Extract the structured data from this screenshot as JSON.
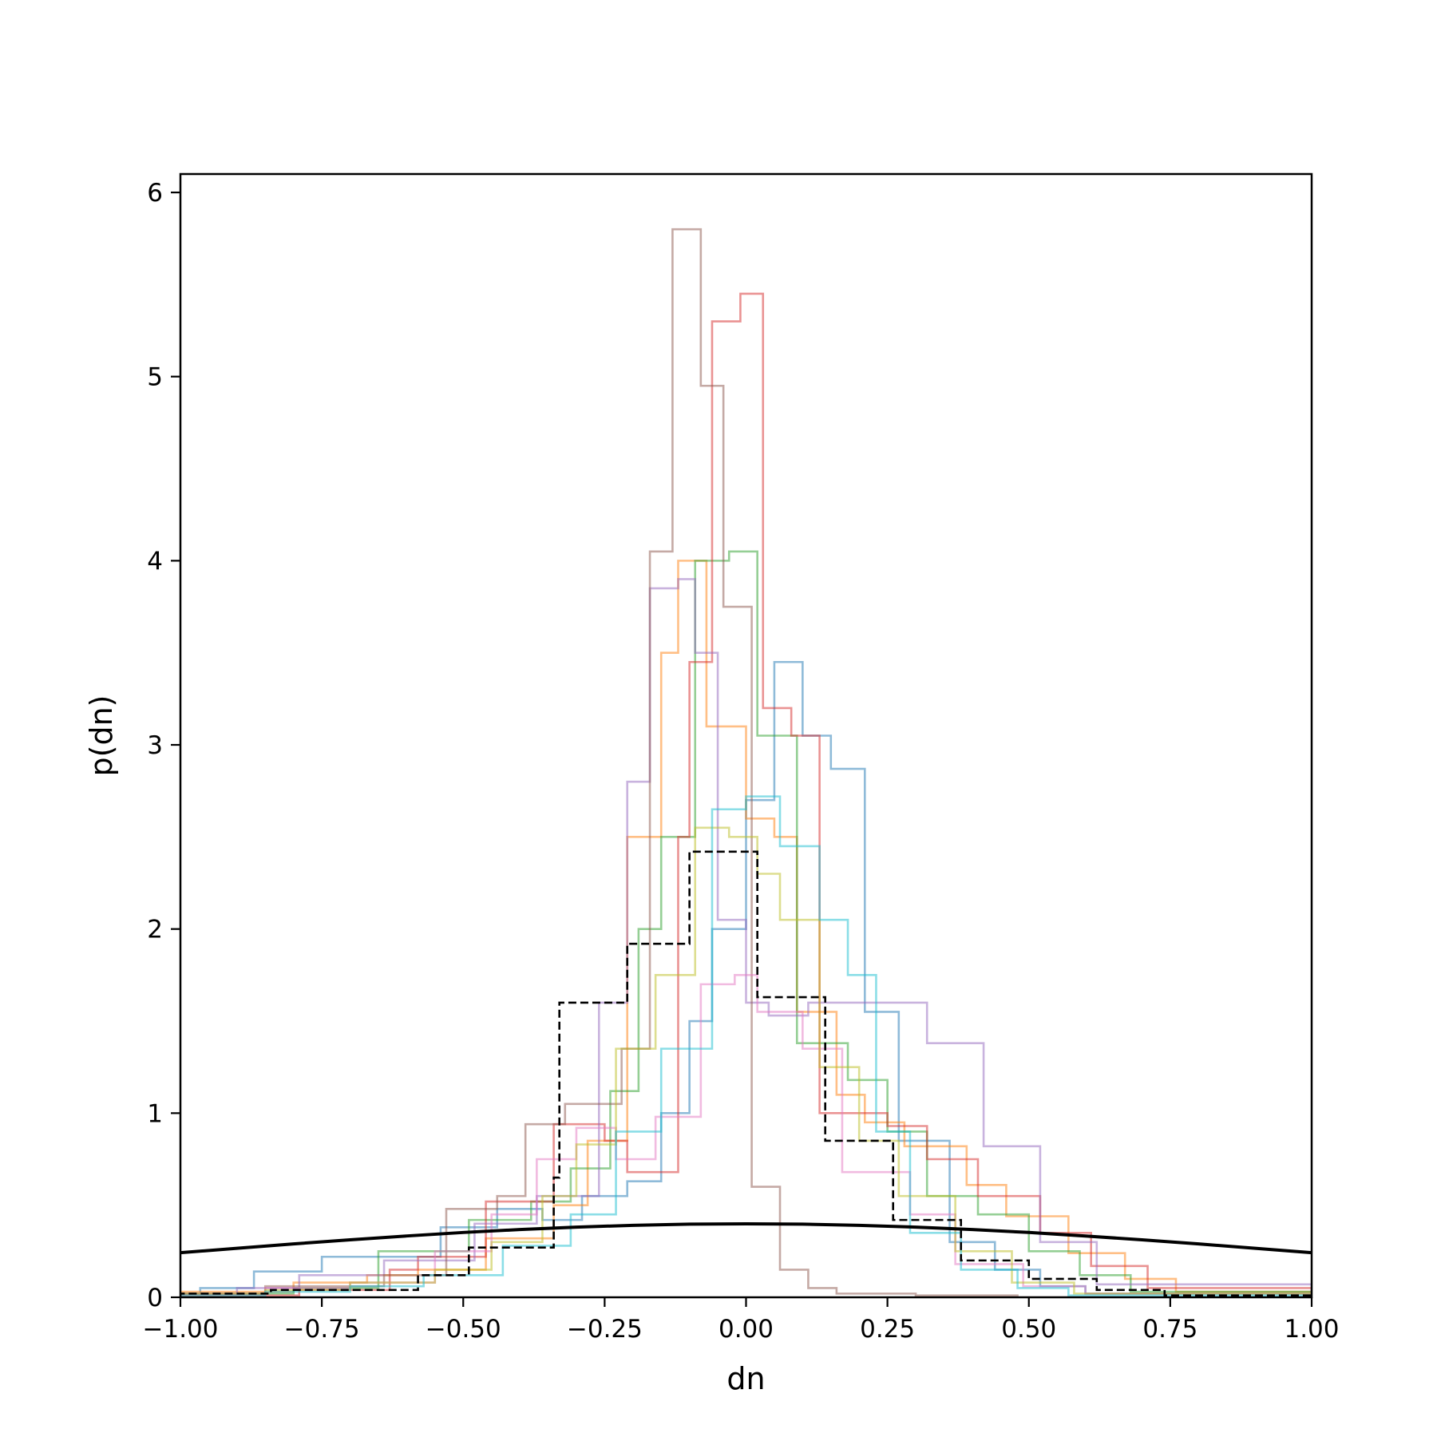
{
  "chart_data": {
    "type": "line",
    "subtype": "step-histogram",
    "xlabel": "dn",
    "ylabel": "p(dn)",
    "xlim": [
      -1.0,
      1.0
    ],
    "ylim": [
      0,
      6.1
    ],
    "x_ticks": [
      -1.0,
      -0.75,
      -0.5,
      -0.25,
      0.0,
      0.25,
      0.5,
      0.75,
      1.0
    ],
    "x_tick_labels": [
      "−1.00",
      "−0.75",
      "−0.50",
      "−0.25",
      "0.00",
      "0.25",
      "0.50",
      "0.75",
      "1.00"
    ],
    "y_ticks": [
      0,
      1,
      2,
      3,
      4,
      5,
      6
    ],
    "y_tick_labels": [
      "0",
      "1",
      "2",
      "3",
      "4",
      "5",
      "6"
    ],
    "grid": false,
    "legend": "none",
    "series": [
      {
        "color": "#1f77b4",
        "style": "step",
        "edges": [
          -1.0,
          -0.965,
          -0.87,
          -0.75,
          -0.54,
          -0.44,
          -0.36,
          -0.29,
          -0.21,
          -0.15,
          -0.1,
          -0.06,
          0.0,
          0.05,
          0.1,
          0.15,
          0.21,
          0.27,
          0.36,
          0.44,
          0.52,
          0.6,
          1.0
        ],
        "values": [
          0.02,
          0.05,
          0.14,
          0.22,
          0.38,
          0.48,
          0.42,
          0.55,
          0.63,
          1.0,
          1.5,
          2.0,
          2.7,
          3.45,
          3.05,
          2.87,
          1.55,
          0.85,
          0.3,
          0.15,
          0.06,
          0.02
        ]
      },
      {
        "color": "#ff7f0e",
        "style": "step",
        "edges": [
          -1.0,
          -0.8,
          -0.67,
          -0.58,
          -0.46,
          -0.34,
          -0.28,
          -0.21,
          -0.15,
          -0.12,
          -0.07,
          0.0,
          0.05,
          0.09,
          0.16,
          0.21,
          0.28,
          0.39,
          0.46,
          0.57,
          0.67,
          0.76,
          1.0
        ],
        "values": [
          0.03,
          0.08,
          0.12,
          0.15,
          0.32,
          0.5,
          0.85,
          2.5,
          3.5,
          4.0,
          3.1,
          2.6,
          2.5,
          1.55,
          1.1,
          0.95,
          0.82,
          0.61,
          0.44,
          0.24,
          0.1,
          0.03
        ]
      },
      {
        "color": "#2ca02c",
        "style": "step",
        "edges": [
          -1.0,
          -0.8,
          -0.65,
          -0.49,
          -0.38,
          -0.31,
          -0.24,
          -0.19,
          -0.15,
          -0.09,
          -0.03,
          0.02,
          0.09,
          0.18,
          0.25,
          0.32,
          0.41,
          0.5,
          0.59,
          0.68,
          1.0
        ],
        "values": [
          0.02,
          0.05,
          0.25,
          0.42,
          0.52,
          0.7,
          1.12,
          2.0,
          2.5,
          4.0,
          4.05,
          3.05,
          1.38,
          1.18,
          0.9,
          0.55,
          0.45,
          0.25,
          0.12,
          0.03
        ]
      },
      {
        "color": "#d62728",
        "style": "step",
        "edges": [
          -1.0,
          -0.79,
          -0.63,
          -0.58,
          -0.46,
          -0.34,
          -0.25,
          -0.21,
          -0.12,
          -0.1,
          -0.06,
          -0.01,
          0.03,
          0.08,
          0.13,
          0.25,
          0.32,
          0.41,
          0.52,
          0.61,
          0.71,
          1.0
        ],
        "values": [
          0.01,
          0.04,
          0.15,
          0.22,
          0.52,
          0.94,
          0.85,
          0.68,
          2.5,
          3.45,
          5.3,
          5.45,
          3.2,
          3.05,
          1.0,
          0.93,
          0.75,
          0.55,
          0.35,
          0.17,
          0.05
        ]
      },
      {
        "color": "#9467bd",
        "style": "step",
        "edges": [
          -1.0,
          -0.9,
          -0.79,
          -0.64,
          -0.48,
          -0.37,
          -0.26,
          -0.21,
          -0.17,
          -0.12,
          -0.09,
          -0.05,
          0.0,
          0.04,
          0.11,
          0.21,
          0.32,
          0.42,
          0.52,
          0.62,
          1.0
        ],
        "values": [
          0.02,
          0.05,
          0.12,
          0.2,
          0.4,
          0.55,
          1.6,
          2.8,
          3.85,
          3.9,
          3.5,
          2.05,
          1.6,
          1.53,
          1.6,
          1.6,
          1.38,
          0.82,
          0.3,
          0.07
        ]
      },
      {
        "color": "#8c564b",
        "style": "step",
        "edges": [
          -1.0,
          -0.85,
          -0.64,
          -0.53,
          -0.44,
          -0.39,
          -0.32,
          -0.22,
          -0.17,
          -0.13,
          -0.08,
          -0.04,
          0.01,
          0.06,
          0.11,
          0.16,
          0.3,
          0.48,
          1.0
        ],
        "values": [
          0.02,
          0.06,
          0.12,
          0.48,
          0.55,
          0.94,
          1.05,
          1.35,
          4.05,
          5.8,
          4.95,
          3.75,
          0.6,
          0.15,
          0.05,
          0.02,
          0.01,
          0.0
        ]
      },
      {
        "color": "#e377c2",
        "style": "step",
        "edges": [
          -1.0,
          -0.85,
          -0.7,
          -0.55,
          -0.45,
          -0.37,
          -0.3,
          -0.23,
          -0.16,
          -0.08,
          -0.02,
          0.02,
          0.1,
          0.17,
          0.29,
          0.37,
          0.49,
          0.6,
          1.0
        ],
        "values": [
          0.02,
          0.05,
          0.08,
          0.25,
          0.45,
          0.75,
          0.92,
          0.75,
          0.98,
          1.7,
          1.75,
          1.55,
          1.35,
          0.68,
          0.45,
          0.18,
          0.06,
          0.02
        ]
      },
      {
        "color": "#bcbd22",
        "style": "step",
        "edges": [
          -1.0,
          -0.85,
          -0.7,
          -0.55,
          -0.45,
          -0.36,
          -0.3,
          -0.23,
          -0.16,
          -0.09,
          -0.03,
          0.02,
          0.06,
          0.13,
          0.2,
          0.27,
          0.37,
          0.47,
          0.58,
          1.0
        ],
        "values": [
          0.02,
          0.04,
          0.08,
          0.15,
          0.3,
          0.55,
          0.83,
          1.35,
          1.75,
          2.55,
          2.5,
          2.3,
          2.05,
          1.25,
          0.85,
          0.55,
          0.25,
          0.08,
          0.02
        ]
      },
      {
        "color": "#17becf",
        "style": "step",
        "edges": [
          -1.0,
          -0.85,
          -0.7,
          -0.57,
          -0.43,
          -0.31,
          -0.23,
          -0.15,
          -0.06,
          0.0,
          0.06,
          0.13,
          0.18,
          0.23,
          0.29,
          0.38,
          0.48,
          0.57,
          1.0
        ],
        "values": [
          0.01,
          0.03,
          0.06,
          0.12,
          0.28,
          0.45,
          0.9,
          1.35,
          2.65,
          2.72,
          2.45,
          2.05,
          1.75,
          0.9,
          0.35,
          0.15,
          0.05,
          0.01
        ]
      },
      {
        "color": "#000000",
        "style": "dashed-step",
        "edges": [
          -1.0,
          -0.84,
          -0.58,
          -0.49,
          -0.46,
          -0.34,
          -0.33,
          -0.21,
          -0.1,
          0.02,
          0.14,
          0.26,
          0.38,
          0.5,
          0.62,
          0.74,
          1.0
        ],
        "values": [
          0.02,
          0.04,
          0.12,
          0.27,
          0.27,
          0.65,
          1.6,
          1.92,
          2.42,
          1.63,
          0.85,
          0.42,
          0.2,
          0.1,
          0.04,
          0.01
        ]
      },
      {
        "color": "#000000",
        "style": "solid-curve",
        "name": "",
        "description_role": "reference normal density N(0,1)",
        "x": [
          -1.0,
          -0.9,
          -0.8,
          -0.7,
          -0.6,
          -0.5,
          -0.4,
          -0.3,
          -0.2,
          -0.1,
          0.0,
          0.1,
          0.2,
          0.3,
          0.4,
          0.5,
          0.6,
          0.7,
          0.8,
          0.9,
          1.0
        ],
        "y": [
          0.242,
          0.266,
          0.29,
          0.312,
          0.333,
          0.352,
          0.368,
          0.381,
          0.391,
          0.397,
          0.399,
          0.397,
          0.391,
          0.381,
          0.368,
          0.352,
          0.333,
          0.312,
          0.29,
          0.266,
          0.242
        ]
      }
    ]
  }
}
